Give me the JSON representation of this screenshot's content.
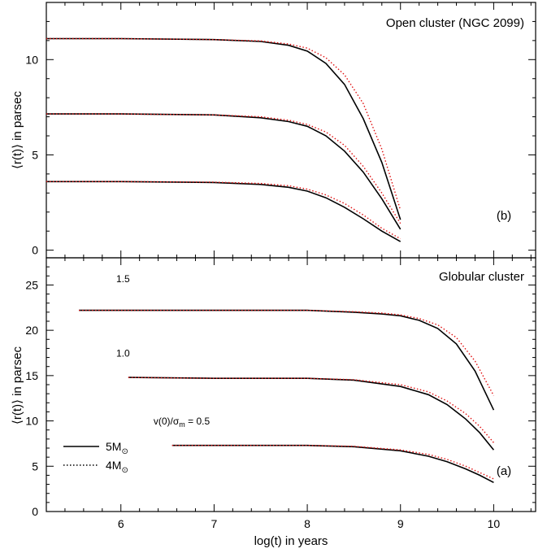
{
  "chart_data": [
    {
      "id": "top",
      "type": "line",
      "title": "Open cluster (NGC 2099)",
      "panel_label": "(b)",
      "ylabel": "⟨r(t)⟩ in parsec",
      "xlim": [
        5.2,
        10.45
      ],
      "ylim": [
        -0.4,
        13
      ],
      "yticks": [
        0,
        5,
        10
      ],
      "series": [
        {
          "style": "solid",
          "x": [
            5.2,
            6.0,
            7.0,
            7.5,
            7.8,
            8.0,
            8.2,
            8.4,
            8.6,
            8.8,
            9.0
          ],
          "y": [
            11.1,
            11.1,
            11.05,
            10.95,
            10.75,
            10.45,
            9.8,
            8.7,
            6.9,
            4.6,
            1.6
          ]
        },
        {
          "style": "dotted",
          "x": [
            5.2,
            6.0,
            7.0,
            7.5,
            7.8,
            8.0,
            8.2,
            8.4,
            8.6,
            8.8,
            9.0
          ],
          "y": [
            11.1,
            11.1,
            11.05,
            10.98,
            10.82,
            10.6,
            10.1,
            9.2,
            7.7,
            5.3,
            2.1
          ]
        },
        {
          "style": "solid",
          "x": [
            5.2,
            6.0,
            7.0,
            7.5,
            7.8,
            8.0,
            8.2,
            8.4,
            8.6,
            8.8,
            9.0
          ],
          "y": [
            7.15,
            7.15,
            7.1,
            6.95,
            6.75,
            6.5,
            6.0,
            5.2,
            4.1,
            2.7,
            1.1
          ]
        },
        {
          "style": "dotted",
          "x": [
            5.2,
            6.0,
            7.0,
            7.5,
            7.8,
            8.0,
            8.2,
            8.4,
            8.6,
            8.8,
            9.0
          ],
          "y": [
            7.15,
            7.15,
            7.1,
            7.0,
            6.82,
            6.6,
            6.2,
            5.5,
            4.4,
            3.0,
            1.4
          ]
        },
        {
          "style": "solid",
          "x": [
            5.2,
            6.0,
            7.0,
            7.5,
            7.8,
            8.0,
            8.2,
            8.4,
            8.6,
            8.8,
            9.0
          ],
          "y": [
            3.6,
            3.6,
            3.55,
            3.45,
            3.3,
            3.1,
            2.75,
            2.25,
            1.65,
            1.0,
            0.45
          ]
        },
        {
          "style": "dotted",
          "x": [
            5.2,
            6.0,
            7.0,
            7.5,
            7.8,
            8.0,
            8.2,
            8.4,
            8.6,
            8.8,
            9.0
          ],
          "y": [
            3.6,
            3.6,
            3.57,
            3.5,
            3.38,
            3.2,
            2.9,
            2.45,
            1.85,
            1.15,
            0.6
          ]
        }
      ]
    },
    {
      "id": "bottom",
      "type": "line",
      "title": "Globular cluster",
      "panel_label": "(a)",
      "ylabel": "⟨r(t)⟩ in parsec",
      "xlabel": "log(t) in years",
      "xlim": [
        5.2,
        10.45
      ],
      "ylim": [
        0,
        28
      ],
      "xticks": [
        6,
        7,
        8,
        9,
        10
      ],
      "yticks": [
        0,
        5,
        10,
        15,
        20,
        25
      ],
      "annotations": [
        {
          "text": "1.5",
          "x": 5.95,
          "y": 25.3
        },
        {
          "text": "1.0",
          "x": 5.95,
          "y": 17.1
        },
        {
          "text": "v(0)/σ",
          "sub": "m",
          "rest": " = 0.5",
          "x": 6.35,
          "y": 9.6
        }
      ],
      "legend": {
        "placement": "lower-left",
        "entries": [
          {
            "style": "solid",
            "label": "5M",
            "sub": "⊙"
          },
          {
            "style": "dotted",
            "label": "4M",
            "sub": "⊙"
          }
        ]
      },
      "series": [
        {
          "style": "solid",
          "name": "5M⊙",
          "x": [
            5.55,
            6.5,
            7.5,
            8.0,
            8.5,
            8.8,
            9.0,
            9.2,
            9.4,
            9.6,
            9.8,
            10.0
          ],
          "y": [
            22.2,
            22.2,
            22.2,
            22.2,
            22.0,
            21.8,
            21.6,
            21.1,
            20.2,
            18.5,
            15.5,
            11.2
          ]
        },
        {
          "style": "dotted",
          "name": "4M⊙",
          "x": [
            5.55,
            6.5,
            7.5,
            8.0,
            8.5,
            8.8,
            9.0,
            9.2,
            9.4,
            9.6,
            9.8,
            10.0
          ],
          "y": [
            22.2,
            22.2,
            22.2,
            22.2,
            22.05,
            21.9,
            21.7,
            21.3,
            20.6,
            19.2,
            16.6,
            12.8
          ]
        },
        {
          "style": "solid",
          "x": [
            6.08,
            7.0,
            8.0,
            8.5,
            9.0,
            9.3,
            9.5,
            9.7,
            9.85,
            10.0
          ],
          "y": [
            14.8,
            14.7,
            14.7,
            14.5,
            13.8,
            12.9,
            11.8,
            10.2,
            8.7,
            6.8
          ]
        },
        {
          "style": "dotted",
          "x": [
            6.08,
            7.0,
            8.0,
            8.5,
            9.0,
            9.3,
            9.5,
            9.7,
            9.85,
            10.0
          ],
          "y": [
            14.8,
            14.7,
            14.7,
            14.55,
            14.0,
            13.2,
            12.2,
            10.8,
            9.4,
            7.6
          ]
        },
        {
          "style": "solid",
          "x": [
            6.55,
            7.5,
            8.0,
            8.5,
            9.0,
            9.3,
            9.5,
            9.7,
            9.85,
            10.0
          ],
          "y": [
            7.3,
            7.3,
            7.3,
            7.15,
            6.7,
            6.1,
            5.5,
            4.7,
            4.0,
            3.2
          ]
        },
        {
          "style": "dotted",
          "x": [
            6.55,
            7.5,
            8.0,
            8.5,
            9.0,
            9.3,
            9.5,
            9.7,
            9.85,
            10.0
          ],
          "y": [
            7.3,
            7.3,
            7.3,
            7.2,
            6.8,
            6.3,
            5.75,
            5.0,
            4.3,
            3.6
          ]
        }
      ]
    }
  ]
}
